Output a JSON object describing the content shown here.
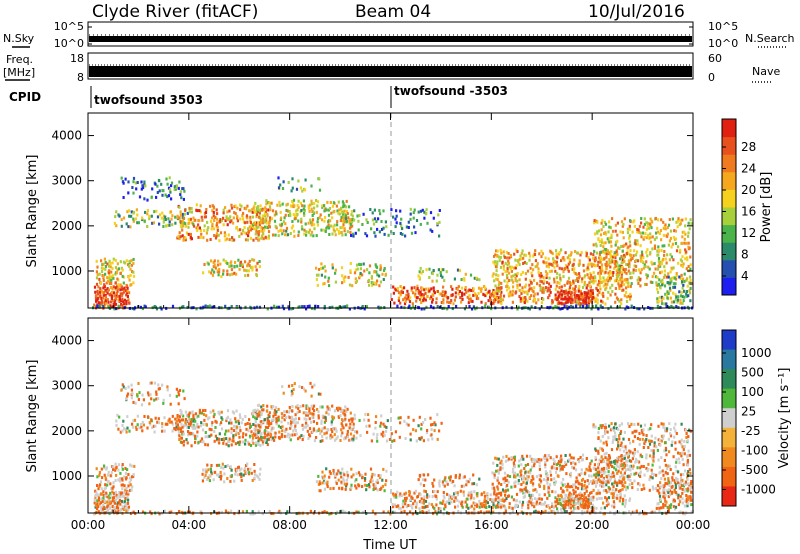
{
  "header": {
    "station": "Clyde River (fitACF)",
    "beam": "Beam 04",
    "date": "10/Jul/2016"
  },
  "strips": {
    "nsky_label": "N.Sky",
    "nsearch_label": "N.Search",
    "nsky_ticks": [
      "10^5",
      "10^0"
    ],
    "nsearch_ticks": [
      "10^5",
      "10^0"
    ],
    "freq_label": [
      "Freq.",
      "[MHz]"
    ],
    "freq_ticks": [
      "18",
      "8"
    ],
    "nave_label": "Nave",
    "nave_ticks": [
      "60",
      "0"
    ],
    "cpid_label": "CPID",
    "cpid_segments": [
      "twofsound 3503",
      "twofsound -3503"
    ]
  },
  "chart_data": [
    {
      "type": "heatmap",
      "parameter": "power",
      "ylabel": "Slant Range [km]",
      "ylim": [
        180,
        4500
      ],
      "yticks": [
        "1000",
        "2000",
        "3000",
        "4000"
      ],
      "xlim_hours": [
        0,
        24
      ],
      "colorbar": {
        "label": "Power [dB]",
        "ticks": [
          "4",
          "8",
          "12",
          "16",
          "20",
          "24",
          "28"
        ],
        "colors": [
          "#1e1ef0",
          "#2550b0",
          "#2a8a6a",
          "#4ab34a",
          "#a8cf3c",
          "#f5d21e",
          "#f5a81e",
          "#f07a1e",
          "#e8501e",
          "#e02010"
        ]
      }
    },
    {
      "type": "heatmap",
      "parameter": "velocity",
      "ylabel": "Slant Range [km]",
      "ylim": [
        180,
        4500
      ],
      "yticks": [
        "1000",
        "2000",
        "3000",
        "4000"
      ],
      "xlim_hours": [
        0,
        24
      ],
      "xlabel": "Time UT",
      "xticks": [
        "00:00",
        "04:00",
        "08:00",
        "12:00",
        "16:00",
        "20:00",
        "00:00"
      ],
      "colorbar": {
        "label": "Velocity [m s⁻¹]",
        "ticks": [
          "1000",
          "500",
          "100",
          "25",
          "-25",
          "-100",
          "-500",
          "-1000"
        ],
        "colors": [
          "#1e3cc8",
          "#2878a0",
          "#2f8a5a",
          "#4fb83a",
          "#cfcfcf",
          "#f5b23a",
          "#f08a1e",
          "#f06414",
          "#e82814"
        ]
      }
    }
  ]
}
